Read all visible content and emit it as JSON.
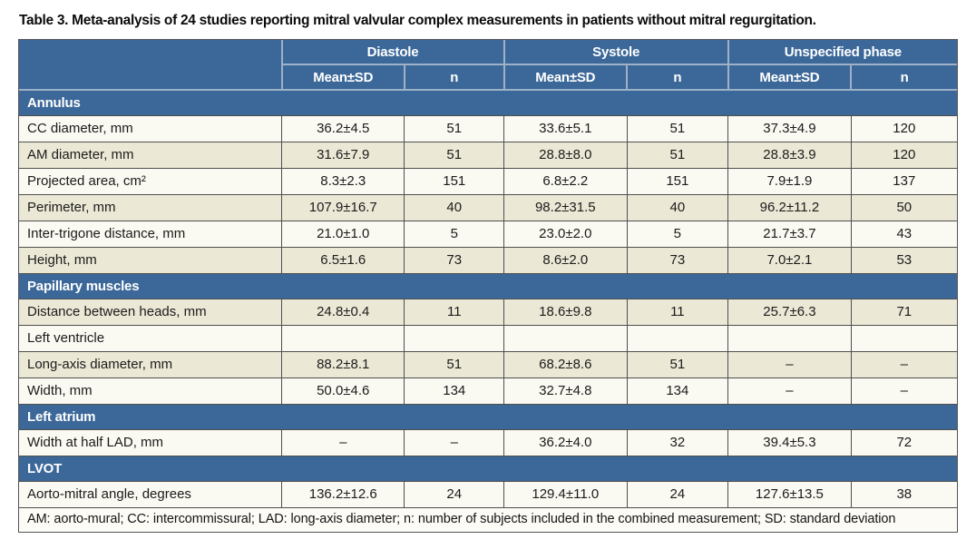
{
  "title": "Table 3. Meta-analysis of 24 studies reporting mitral valvular complex measurements in patients without mitral regurgitation.",
  "columns": {
    "phase_groups": [
      {
        "label": "Diastole"
      },
      {
        "label": "Systole"
      },
      {
        "label": "Unspecified phase"
      }
    ],
    "sub_headers": [
      "Mean±SD",
      "n",
      "Mean±SD",
      "n",
      "Mean±SD",
      "n"
    ]
  },
  "sections": [
    {
      "label": "Annulus",
      "rows": [
        {
          "parameter": "CC diameter, mm",
          "cells": [
            "36.2±4.5",
            "51",
            "33.6±5.1",
            "51",
            "37.3±4.9",
            "120"
          ]
        },
        {
          "parameter": "AM diameter, mm",
          "cells": [
            "31.6±7.9",
            "51",
            "28.8±8.0",
            "51",
            "28.8±3.9",
            "120"
          ]
        },
        {
          "parameter": "Projected area, cm²",
          "cells": [
            "8.3±2.3",
            "151",
            "6.8±2.2",
            "151",
            "7.9±1.9",
            "137"
          ]
        },
        {
          "parameter": "Perimeter, mm",
          "cells": [
            "107.9±16.7",
            "40",
            "98.2±31.5",
            "40",
            "96.2±11.2",
            "50"
          ]
        },
        {
          "parameter": "Inter-trigone distance, mm",
          "cells": [
            "21.0±1.0",
            "5",
            "23.0±2.0",
            "5",
            "21.7±3.7",
            "43"
          ]
        },
        {
          "parameter": "Height, mm",
          "cells": [
            "6.5±1.6",
            "73",
            "8.6±2.0",
            "73",
            "7.0±2.1",
            "53"
          ]
        }
      ]
    },
    {
      "label": "Papillary muscles",
      "rows": [
        {
          "parameter": "Distance between heads, mm",
          "cells": [
            "24.8±0.4",
            "11",
            "18.6±9.8",
            "11",
            "25.7±6.3",
            "71"
          ]
        },
        {
          "parameter": "Left ventricle",
          "cells": [
            "",
            "",
            "",
            "",
            "",
            ""
          ]
        },
        {
          "parameter": "Long-axis diameter, mm",
          "cells": [
            "88.2±8.1",
            "51",
            "68.2±8.6",
            "51",
            "–",
            "–"
          ]
        },
        {
          "parameter": "Width, mm",
          "cells": [
            "50.0±4.6",
            "134",
            "32.7±4.8",
            "134",
            "–",
            "–"
          ]
        }
      ]
    },
    {
      "label": "Left atrium",
      "rows": [
        {
          "parameter": "Width at half LAD, mm",
          "cells": [
            "–",
            "–",
            "36.2±4.0",
            "32",
            "39.4±5.3",
            "72"
          ]
        }
      ]
    },
    {
      "label": "LVOT",
      "rows": [
        {
          "parameter": "Aorto-mitral angle, degrees",
          "cells": [
            "136.2±12.6",
            "24",
            "129.4±11.0",
            "24",
            "127.6±13.5",
            "38"
          ]
        }
      ]
    }
  ],
  "footnote": "AM: aorto-mural; CC: intercommissural; LAD: long-axis diameter; n: number of subjects included in the combined measurement; SD: standard deviation",
  "colors": {
    "header_blue": "#3c6899",
    "row_cream": "#ece8d6",
    "row_white": "#faf9f2",
    "header_divider": "#9db1c7",
    "row_border": "#4f4f4f"
  }
}
